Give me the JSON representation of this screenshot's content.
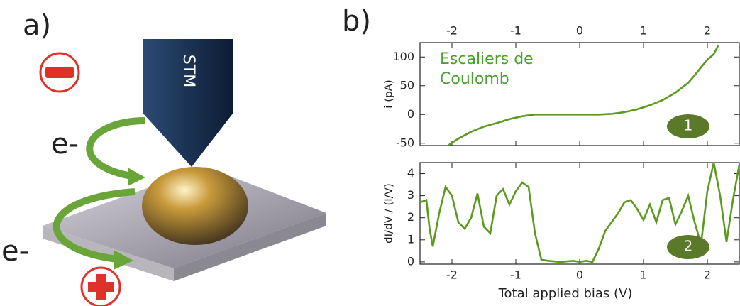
{
  "panel_a": {
    "label": "a)",
    "tip_label": "STM",
    "electron_labels": [
      "e-",
      "e-"
    ]
  },
  "panel_b": {
    "label": "b)"
  },
  "chart_data": [
    {
      "type": "line",
      "ylabel": "i (pA)",
      "annotation": [
        "Escaliers de",
        "Coulomb"
      ],
      "badge": "1",
      "xaxis": "top",
      "color": "#5b9a1f",
      "xlim": [
        -2.5,
        2.5
      ],
      "xticks": [
        -2,
        -1,
        0,
        1,
        2
      ],
      "ylim": [
        -54,
        125
      ],
      "yticks": [
        -50,
        0,
        50,
        100
      ],
      "x": [
        -2.05,
        -1.9,
        -1.7,
        -1.5,
        -1.3,
        -1.1,
        -0.9,
        -0.7,
        -0.5,
        -0.2,
        0,
        0.3,
        0.5,
        0.7,
        0.9,
        1.1,
        1.3,
        1.5,
        1.7,
        1.8,
        1.9,
        2.0,
        2.1,
        2.17
      ],
      "values": [
        -53,
        -42,
        -30,
        -21,
        -15,
        -8,
        -3,
        0,
        0,
        0,
        0,
        0,
        1,
        4,
        9,
        16,
        25,
        38,
        55,
        68,
        82,
        95,
        105,
        120
      ]
    },
    {
      "type": "line",
      "ylabel": "dI/dV / (I/V)",
      "xlabel": "Total applied bias (V)",
      "badge": "2",
      "xaxis": "bottom",
      "color": "#5b9a1f",
      "xlim": [
        -2.5,
        2.5
      ],
      "xticks": [
        -2,
        -1,
        0,
        1,
        2
      ],
      "ylim": [
        -0.1,
        4.5
      ],
      "yticks": [
        0,
        1,
        2,
        3,
        4
      ],
      "x": [
        -2.5,
        -2.4,
        -2.35,
        -2.3,
        -2.2,
        -2.1,
        -2.0,
        -1.9,
        -1.8,
        -1.7,
        -1.6,
        -1.5,
        -1.4,
        -1.3,
        -1.2,
        -1.1,
        -1.0,
        -0.9,
        -0.8,
        -0.7,
        -0.6,
        -0.5,
        -0.3,
        -0.1,
        0,
        0.1,
        0.2,
        0.3,
        0.4,
        0.5,
        0.6,
        0.7,
        0.8,
        0.9,
        1.0,
        1.1,
        1.2,
        1.3,
        1.4,
        1.5,
        1.6,
        1.7,
        1.8,
        1.9,
        2.0,
        2.1,
        2.2,
        2.3,
        2.4,
        2.5
      ],
      "values": [
        2.7,
        2.8,
        1.5,
        0.7,
        2.2,
        3.4,
        3.0,
        1.8,
        1.5,
        2.0,
        3.1,
        1.6,
        1.3,
        3.0,
        3.3,
        2.6,
        3.2,
        3.6,
        3.4,
        1.3,
        0.1,
        0.05,
        0.0,
        0.05,
        0.0,
        0.05,
        0.0,
        0.6,
        1.4,
        1.8,
        2.2,
        2.7,
        2.8,
        2.4,
        1.9,
        2.6,
        1.8,
        2.8,
        2.9,
        1.7,
        2.3,
        3.0,
        1.8,
        0.8,
        3.2,
        4.5,
        3.0,
        0.9,
        2.8,
        4.4
      ]
    }
  ]
}
